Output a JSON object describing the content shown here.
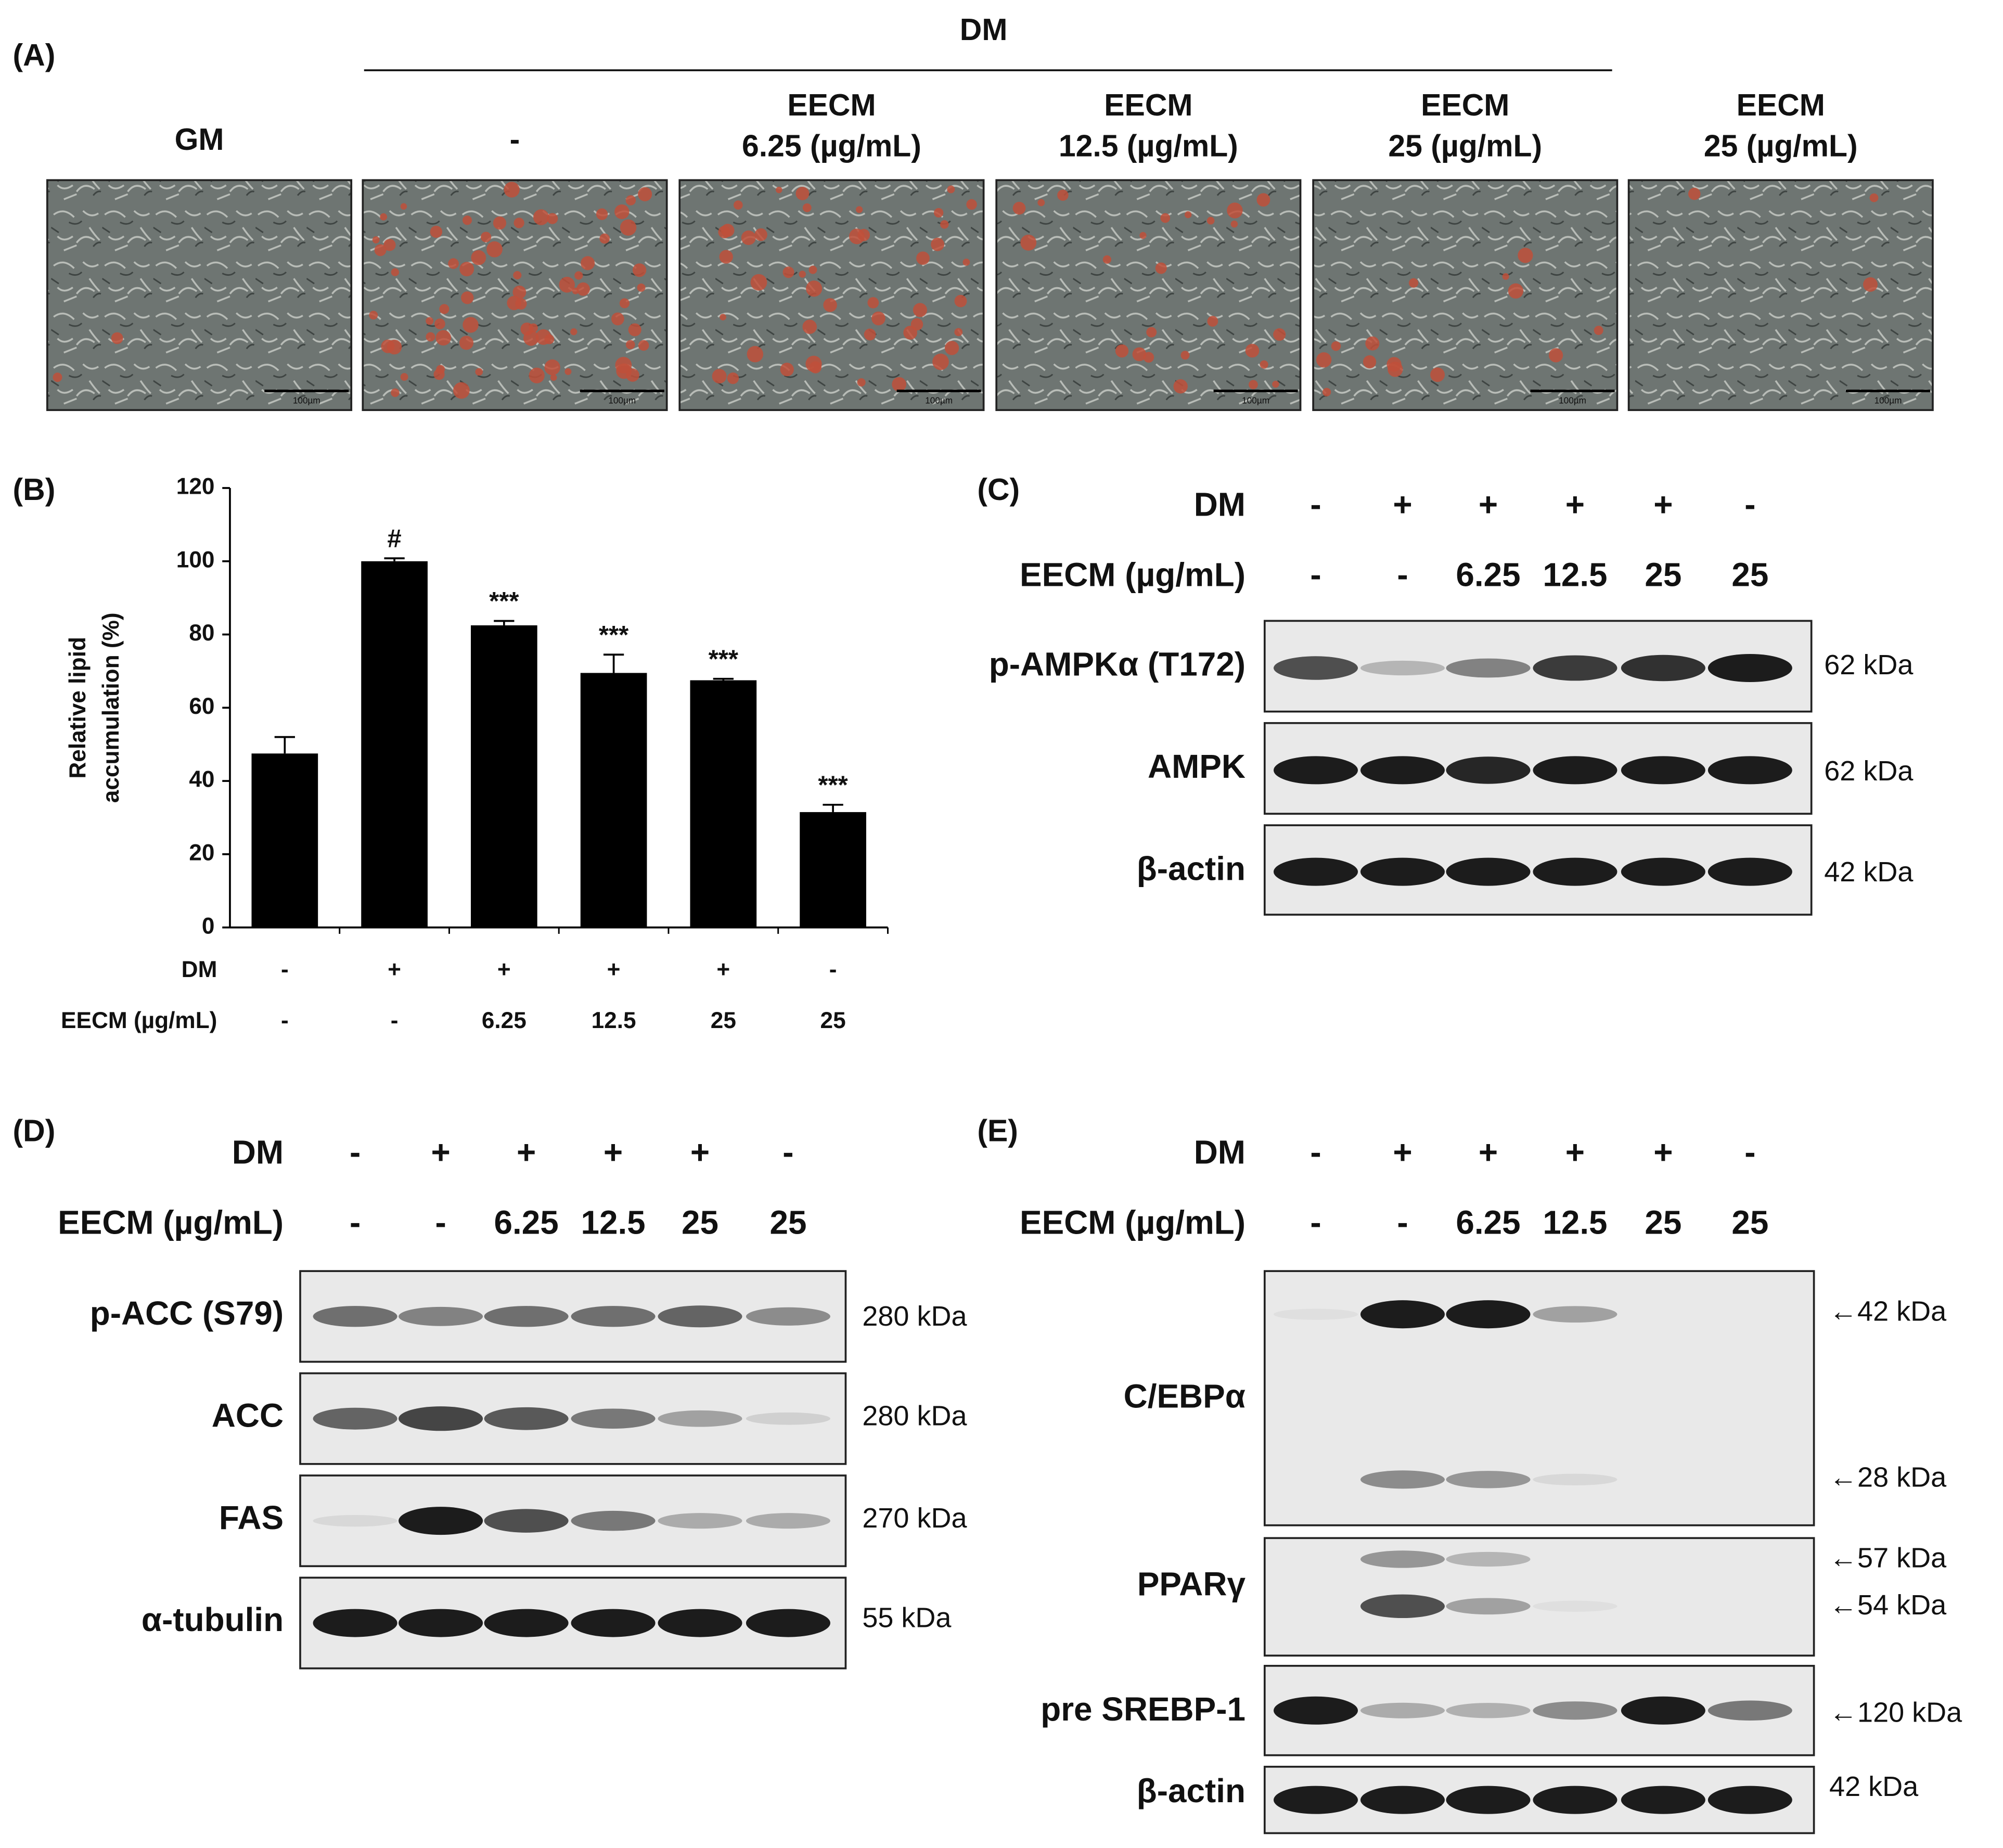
{
  "panel_a": {
    "label": "(A)",
    "group_label": "DM",
    "images": [
      {
        "title": [
          "GM"
        ]
      },
      {
        "title": [
          "-"
        ]
      },
      {
        "title": [
          "EECM",
          "6.25 (µg/mL)"
        ]
      },
      {
        "title": [
          "EECM",
          "12.5 (µg/mL)"
        ]
      },
      {
        "title": [
          "EECM",
          "25 (µg/mL)"
        ]
      },
      {
        "title": [
          "EECM",
          "25 (µg/mL)"
        ]
      }
    ],
    "scale_bar": "100µm"
  },
  "chart_data": {
    "type": "bar",
    "label": "(B)",
    "ylabel": [
      "Relative lipid",
      "accumulation (%)"
    ],
    "category_rows": [
      "DM",
      "EECM (µg/mL)"
    ],
    "categories": [
      [
        "-",
        "-"
      ],
      [
        "+",
        "-"
      ],
      [
        "+",
        "6.25"
      ],
      [
        "+",
        "12.5"
      ],
      [
        "+",
        "25"
      ],
      [
        "-",
        "25"
      ]
    ],
    "values": [
      47.5,
      100,
      82.5,
      69.5,
      67.5,
      31.5
    ],
    "errors": [
      4.5,
      0.8,
      1.2,
      5,
      0.4,
      2
    ],
    "significance": [
      null,
      "#",
      "***",
      "***",
      "***",
      "***"
    ],
    "color": "#000000",
    "ylim": [
      0,
      120
    ],
    "yticks": [
      0,
      20,
      40,
      60,
      80,
      100,
      120
    ]
  },
  "panel_c": {
    "label": "(C)",
    "rows": [
      {
        "label": "DM",
        "values": [
          "-",
          "+",
          "+",
          "+",
          "+",
          "-"
        ]
      },
      {
        "label": "EECM (µg/mL)",
        "values": [
          "-",
          "-",
          "6.25",
          "12.5",
          "25",
          "25"
        ]
      }
    ],
    "blots": [
      {
        "name": "p-AMPKα (T172)",
        "sizes": [
          "62 kDa"
        ]
      },
      {
        "name": "AMPK",
        "sizes": [
          "62 kDa"
        ]
      },
      {
        "name": "β-actin",
        "sizes": [
          "42 kDa"
        ]
      }
    ]
  },
  "panel_d": {
    "label": "(D)",
    "rows": [
      {
        "label": "DM",
        "values": [
          "-",
          "+",
          "+",
          "+",
          "+",
          "-"
        ]
      },
      {
        "label": "EECM (µg/mL)",
        "values": [
          "-",
          "-",
          "6.25",
          "12.5",
          "25",
          "25"
        ]
      }
    ],
    "blots": [
      {
        "name": "p-ACC (S79)",
        "sizes": [
          "280 kDa"
        ]
      },
      {
        "name": "ACC",
        "sizes": [
          "280 kDa"
        ]
      },
      {
        "name": "FAS",
        "sizes": [
          "270 kDa"
        ]
      },
      {
        "name": "α-tubulin",
        "sizes": [
          "55 kDa"
        ]
      }
    ]
  },
  "panel_e": {
    "label": "(E)",
    "rows": [
      {
        "label": "DM",
        "values": [
          "-",
          "+",
          "+",
          "+",
          "+",
          "-"
        ]
      },
      {
        "label": "EECM (µg/mL)",
        "values": [
          "-",
          "-",
          "6.25",
          "12.5",
          "25",
          "25"
        ]
      }
    ],
    "blots": [
      {
        "name": "C/EBPα",
        "sizes": [
          "←42 kDa",
          "←28 kDa"
        ]
      },
      {
        "name": "PPARγ",
        "sizes": [
          "←57 kDa",
          "←54 kDa"
        ]
      },
      {
        "name": "pre SREBP-1",
        "sizes": [
          "←120 kDa"
        ]
      },
      {
        "name": "β-actin",
        "sizes": [
          "42 kDa"
        ]
      }
    ]
  }
}
